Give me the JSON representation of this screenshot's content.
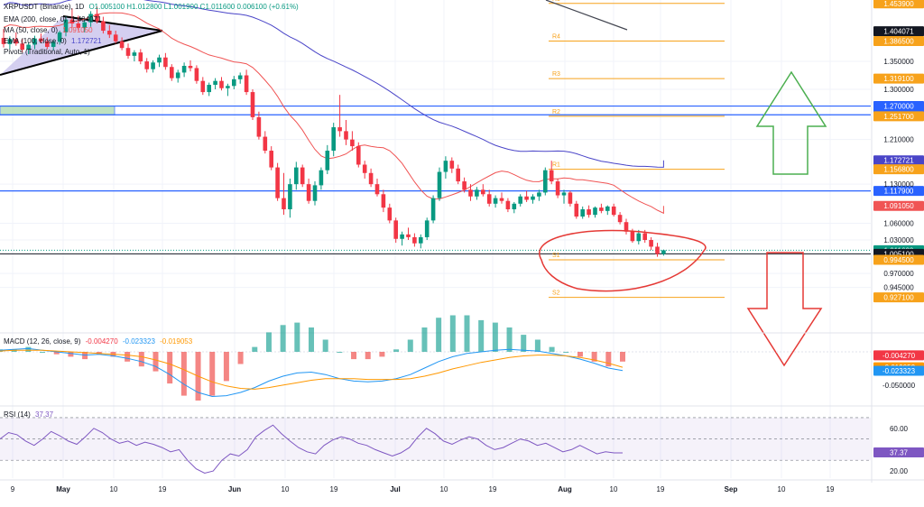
{
  "header": {
    "symbol": "XRPUSDT (Binance), 1D",
    "ohlc": "O1.005100 H1.012800 L1.001900 C1.011600 0.006100 (+0.61%)"
  },
  "indicators": {
    "ema200": {
      "label": "EMA (200, close, 0)",
      "value": "1.404071"
    },
    "ma50": {
      "label": "MA (50, close, 0)",
      "value": "1.091050"
    },
    "ema100": {
      "label": "EMA (100, close, 0)",
      "value": "1.172721"
    },
    "pivots": {
      "label": "Pivots (Traditional, Auto, 1)"
    },
    "macd": {
      "label": "MACD (12, 26, close, 9)",
      "macd": "-0.023323",
      "signal": "-0.019053",
      "hist": "-0.004270"
    },
    "rsi": {
      "label": "RSI (14)",
      "value": "37.37"
    }
  },
  "colors": {
    "up": "#089981",
    "down": "#f23645",
    "ema200": "#000000",
    "ma50": "#f05454",
    "ema100": "#4a45c8",
    "pivot": "#f7a21b",
    "hline": "#2962ff",
    "macd": "#2196f3",
    "signal": "#ff9800",
    "rsi": "#7e57c2",
    "arrow_up": "#4caf50",
    "arrow_down": "#e53935",
    "ellipse": "#e53935"
  },
  "chart_data": [
    {
      "type": "candlestick",
      "title": "XRPUSDT (Binance), 1D",
      "x_ticks": [
        "9",
        "May",
        "10",
        "19",
        "Jun",
        "10",
        "19",
        "Jul",
        "10",
        "19",
        "Aug",
        "10",
        "19",
        "Sep",
        "10",
        "19"
      ],
      "y_ticks": [
        "1.350000",
        "1.300000",
        "1.210000",
        "1.130000",
        "1.060000",
        "1.030000",
        "0.970000",
        "0.945000"
      ],
      "y_range": [
        0.87,
        1.46
      ],
      "grid": true,
      "price_labels": [
        {
          "value": "1.453900",
          "type": "pivot"
        },
        {
          "value": "1.404071",
          "type": "ema200"
        },
        {
          "value": "1.386500",
          "type": "pivot"
        },
        {
          "value": "1.319100",
          "type": "pivot"
        },
        {
          "value": "1.270000",
          "type": "hline"
        },
        {
          "value": "1.254300",
          "type": "hline"
        },
        {
          "value": "1.251700",
          "type": "pivot"
        },
        {
          "value": "1.172721",
          "type": "ema100"
        },
        {
          "value": "1.156800",
          "type": "pivot"
        },
        {
          "value": "1.117900",
          "type": "hline"
        },
        {
          "value": "1.091050",
          "type": "ma50"
        },
        {
          "value": "1.011600",
          "type": "last"
        },
        {
          "value": "1.005100",
          "type": "hline_dark"
        },
        {
          "value": "0.994500",
          "type": "pivot"
        },
        {
          "value": "0.927100",
          "type": "pivot"
        }
      ],
      "pivots": [
        {
          "name": "R5",
          "value": 1.4539
        },
        {
          "name": "R4",
          "value": 1.3865
        },
        {
          "name": "R3",
          "value": 1.3191
        },
        {
          "name": "R2",
          "value": 1.2517
        },
        {
          "name": "R1",
          "value": 1.1568
        },
        {
          "name": "S1",
          "value": 0.9945
        },
        {
          "name": "S2",
          "value": 0.9271
        }
      ],
      "hlines": [
        1.27,
        1.2543,
        1.1179,
        1.0051
      ],
      "candles": [
        [
          1.392,
          1.408,
          1.375,
          1.381
        ],
        [
          1.381,
          1.395,
          1.372,
          1.39
        ],
        [
          1.39,
          1.402,
          1.378,
          1.382
        ],
        [
          1.382,
          1.39,
          1.366,
          1.371
        ],
        [
          1.371,
          1.384,
          1.363,
          1.38
        ],
        [
          1.38,
          1.396,
          1.372,
          1.391
        ],
        [
          1.391,
          1.4,
          1.383,
          1.386
        ],
        [
          1.386,
          1.393,
          1.372,
          1.376
        ],
        [
          1.376,
          1.388,
          1.37,
          1.385
        ],
        [
          1.385,
          1.405,
          1.38,
          1.402
        ],
        [
          1.402,
          1.43,
          1.395,
          1.425
        ],
        [
          1.425,
          1.445,
          1.41,
          1.418
        ],
        [
          1.418,
          1.432,
          1.405,
          1.41
        ],
        [
          1.41,
          1.425,
          1.402,
          1.42
        ],
        [
          1.42,
          1.44,
          1.412,
          1.435
        ],
        [
          1.435,
          1.448,
          1.418,
          1.422
        ],
        [
          1.422,
          1.43,
          1.4,
          1.405
        ],
        [
          1.405,
          1.415,
          1.392,
          1.398
        ],
        [
          1.398,
          1.405,
          1.382,
          1.386
        ],
        [
          1.386,
          1.393,
          1.37,
          1.374
        ],
        [
          1.374,
          1.382,
          1.355,
          1.36
        ],
        [
          1.36,
          1.37,
          1.35,
          1.366
        ],
        [
          1.366,
          1.372,
          1.345,
          1.35
        ],
        [
          1.35,
          1.356,
          1.33,
          1.336
        ],
        [
          1.336,
          1.352,
          1.33,
          1.348
        ],
        [
          1.348,
          1.362,
          1.34,
          1.357
        ],
        [
          1.357,
          1.365,
          1.335,
          1.34
        ],
        [
          1.34,
          1.345,
          1.315,
          1.32
        ],
        [
          1.32,
          1.335,
          1.312,
          1.33
        ],
        [
          1.33,
          1.348,
          1.322,
          1.342
        ],
        [
          1.342,
          1.352,
          1.332,
          1.338
        ],
        [
          1.338,
          1.343,
          1.31,
          1.315
        ],
        [
          1.315,
          1.322,
          1.29,
          1.295
        ],
        [
          1.295,
          1.312,
          1.288,
          1.308
        ],
        [
          1.308,
          1.32,
          1.3,
          1.315
        ],
        [
          1.315,
          1.322,
          1.298,
          1.302
        ],
        [
          1.302,
          1.31,
          1.288,
          1.306
        ],
        [
          1.306,
          1.324,
          1.3,
          1.318
        ],
        [
          1.318,
          1.33,
          1.31,
          1.325
        ],
        [
          1.325,
          1.335,
          1.29,
          1.295
        ],
        [
          1.295,
          1.3,
          1.245,
          1.25
        ],
        [
          1.25,
          1.26,
          1.21,
          1.215
        ],
        [
          1.215,
          1.225,
          1.185,
          1.19
        ],
        [
          1.19,
          1.198,
          1.155,
          1.16
        ],
        [
          1.16,
          1.168,
          1.1,
          1.105
        ],
        [
          1.105,
          1.15,
          1.075,
          1.085
        ],
        [
          1.085,
          1.14,
          1.07,
          1.13
        ],
        [
          1.13,
          1.17,
          1.12,
          1.16
        ],
        [
          1.16,
          1.165,
          1.125,
          1.13
        ],
        [
          1.13,
          1.14,
          1.095,
          1.1
        ],
        [
          1.1,
          1.135,
          1.092,
          1.128
        ],
        [
          1.128,
          1.16,
          1.12,
          1.155
        ],
        [
          1.155,
          1.2,
          1.148,
          1.19
        ],
        [
          1.19,
          1.24,
          1.18,
          1.232
        ],
        [
          1.232,
          1.29,
          1.215,
          1.225
        ],
        [
          1.225,
          1.245,
          1.2,
          1.21
        ],
        [
          1.21,
          1.225,
          1.19,
          1.198
        ],
        [
          1.198,
          1.205,
          1.16,
          1.165
        ],
        [
          1.165,
          1.172,
          1.14,
          1.15
        ],
        [
          1.15,
          1.158,
          1.125,
          1.13
        ],
        [
          1.13,
          1.14,
          1.108,
          1.112
        ],
        [
          1.112,
          1.12,
          1.08,
          1.088
        ],
        [
          1.088,
          1.095,
          1.06,
          1.065
        ],
        [
          1.065,
          1.07,
          1.025,
          1.032
        ],
        [
          1.032,
          1.045,
          1.02,
          1.04
        ],
        [
          1.04,
          1.052,
          1.03,
          1.035
        ],
        [
          1.035,
          1.042,
          1.018,
          1.024
        ],
        [
          1.024,
          1.04,
          1.015,
          1.035
        ],
        [
          1.035,
          1.07,
          1.03,
          1.065
        ],
        [
          1.065,
          1.11,
          1.06,
          1.105
        ],
        [
          1.105,
          1.16,
          1.1,
          1.152
        ],
        [
          1.152,
          1.18,
          1.14,
          1.172
        ],
        [
          1.172,
          1.178,
          1.15,
          1.158
        ],
        [
          1.158,
          1.165,
          1.13,
          1.135
        ],
        [
          1.135,
          1.142,
          1.115,
          1.12
        ],
        [
          1.12,
          1.13,
          1.1,
          1.108
        ],
        [
          1.108,
          1.125,
          1.102,
          1.12
        ],
        [
          1.12,
          1.13,
          1.108,
          1.112
        ],
        [
          1.112,
          1.12,
          1.09,
          1.095
        ],
        [
          1.095,
          1.11,
          1.088,
          1.105
        ],
        [
          1.105,
          1.115,
          1.095,
          1.1
        ],
        [
          1.1,
          1.105,
          1.08,
          1.085
        ],
        [
          1.085,
          1.098,
          1.078,
          1.095
        ],
        [
          1.095,
          1.112,
          1.09,
          1.108
        ],
        [
          1.108,
          1.118,
          1.098,
          1.102
        ],
        [
          1.102,
          1.112,
          1.095,
          1.108
        ],
        [
          1.108,
          1.12,
          1.1,
          1.115
        ],
        [
          1.115,
          1.16,
          1.11,
          1.155
        ],
        [
          1.155,
          1.172,
          1.13,
          1.135
        ],
        [
          1.135,
          1.14,
          1.105,
          1.11
        ],
        [
          1.11,
          1.12,
          1.095,
          1.115
        ],
        [
          1.115,
          1.118,
          1.09,
          1.095
        ],
        [
          1.095,
          1.1,
          1.068,
          1.072
        ],
        [
          1.072,
          1.09,
          1.068,
          1.085
        ],
        [
          1.085,
          1.092,
          1.07,
          1.075
        ],
        [
          1.075,
          1.09,
          1.07,
          1.088
        ],
        [
          1.088,
          1.095,
          1.078,
          1.082
        ],
        [
          1.082,
          1.092,
          1.075,
          1.09
        ],
        [
          1.09,
          1.095,
          1.072,
          1.075
        ],
        [
          1.075,
          1.08,
          1.058,
          1.062
        ],
        [
          1.062,
          1.068,
          1.04,
          1.045
        ],
        [
          1.045,
          1.05,
          1.025,
          1.028
        ],
        [
          1.028,
          1.048,
          1.022,
          1.042
        ],
        [
          1.042,
          1.048,
          1.025,
          1.03
        ],
        [
          1.03,
          1.035,
          1.012,
          1.018
        ],
        [
          1.018,
          1.025,
          1.0,
          1.005
        ],
        [
          1.005,
          1.0128,
          1.0019,
          1.0116
        ]
      ]
    },
    {
      "type": "line",
      "title": "MACD (12, 26, close, 9)",
      "y_ticks": [
        "-0.004270",
        "-0.050000"
      ],
      "price_labels": [
        "-0.004270",
        "-0.019053",
        "-0.023323"
      ],
      "series": [
        {
          "name": "MACD",
          "values": [
            0.002,
            0.003,
            0.004,
            0.002,
            0.0,
            -0.002,
            -0.004,
            -0.003,
            -0.005,
            -0.008,
            -0.012,
            -0.018,
            -0.028,
            -0.04,
            -0.05,
            -0.055,
            -0.054,
            -0.05,
            -0.044,
            -0.036,
            -0.03,
            -0.026,
            -0.025,
            -0.028,
            -0.033,
            -0.036,
            -0.037,
            -0.036,
            -0.033,
            -0.028,
            -0.02,
            -0.012,
            -0.006,
            -0.002,
            0.0,
            0.002,
            0.003,
            0.002,
            0.001,
            -0.002,
            -0.005,
            -0.009,
            -0.014,
            -0.02,
            -0.023
          ]
        },
        {
          "name": "Signal",
          "values": [
            0.001,
            0.002,
            0.002,
            0.002,
            0.001,
            0.0,
            -0.001,
            -0.002,
            -0.003,
            -0.004,
            -0.006,
            -0.01,
            -0.015,
            -0.022,
            -0.03,
            -0.037,
            -0.042,
            -0.045,
            -0.046,
            -0.044,
            -0.041,
            -0.038,
            -0.035,
            -0.033,
            -0.033,
            -0.033,
            -0.034,
            -0.034,
            -0.034,
            -0.033,
            -0.03,
            -0.026,
            -0.021,
            -0.017,
            -0.013,
            -0.01,
            -0.007,
            -0.005,
            -0.004,
            -0.004,
            -0.005,
            -0.007,
            -0.01,
            -0.014,
            -0.019
          ]
        }
      ]
    },
    {
      "type": "line",
      "title": "RSI (14)",
      "y_ticks": [
        "60.00",
        "20.00"
      ],
      "y_range": [
        15,
        75
      ],
      "price_labels": [
        "37.37"
      ],
      "series": [
        {
          "name": "RSI",
          "values": [
            50,
            56,
            54,
            48,
            44,
            50,
            57,
            53,
            48,
            45,
            52,
            60,
            56,
            50,
            46,
            48,
            44,
            47,
            45,
            42,
            38,
            40,
            30,
            22,
            18,
            20,
            30,
            36,
            34,
            40,
            52,
            58,
            63,
            55,
            48,
            42,
            38,
            36,
            44,
            49,
            52,
            50,
            46,
            44,
            40,
            37,
            34,
            37,
            42,
            52,
            60,
            55,
            48,
            45,
            49,
            52,
            50,
            44,
            40,
            42,
            46,
            50,
            48,
            44,
            46,
            42,
            38,
            40,
            44,
            40,
            36,
            38,
            37,
            37
          ]
        }
      ]
    }
  ],
  "x_axis": {
    "labels": [
      "9",
      "May",
      "10",
      "19",
      "Jun",
      "10",
      "19",
      "Jul",
      "10",
      "19",
      "Aug",
      "10",
      "19",
      "Sep",
      "10",
      "19"
    ]
  }
}
